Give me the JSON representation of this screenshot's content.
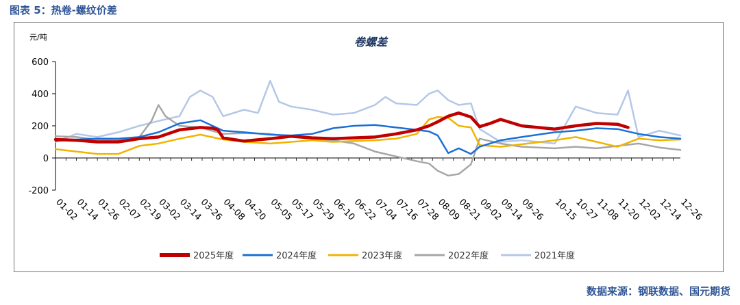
{
  "header": {
    "figure_title": "图表 5：热卷-螺纹价差"
  },
  "footer": {
    "source": "数据来源：钢联数据、国元期货"
  },
  "chart_data": {
    "type": "line",
    "title": "卷螺差",
    "ylabel": "元/吨",
    "ylim": [
      -200,
      600
    ],
    "yticks": [
      600,
      400,
      200,
      0,
      -200
    ],
    "x_tick_labels": [
      "01-02",
      "01-14",
      "01-26",
      "02-07",
      "02-19",
      "03-02",
      "03-14",
      "03-26",
      "04-08",
      "04-20",
      "05-05",
      "05-17",
      "05-29",
      "06-10",
      "06-22",
      "07-04",
      "07-16",
      "07-28",
      "08-09",
      "08-21",
      "09-02",
      "09-14",
      "09-26",
      "10-15",
      "10-27",
      "11-08",
      "11-20",
      "12-02",
      "12-14",
      "12-26"
    ],
    "legend_position": "bottom",
    "grid": false,
    "series": [
      {
        "name": "2025年度",
        "color": "#c00000",
        "x": [
          "01-02",
          "01-14",
          "01-26",
          "02-07",
          "02-19",
          "03-02",
          "03-14",
          "03-26",
          "04-02",
          "04-05",
          "04-08",
          "04-20",
          "05-05",
          "05-17",
          "05-29",
          "06-10",
          "06-22",
          "07-04",
          "07-16",
          "07-28",
          "08-04",
          "08-09",
          "08-15",
          "08-21",
          "08-28",
          "09-02",
          "09-08",
          "09-14",
          "09-26",
          "10-15",
          "10-27",
          "11-08",
          "11-20",
          "11-26"
        ],
        "y": [
          115,
          110,
          100,
          100,
          120,
          130,
          175,
          190,
          185,
          175,
          125,
          105,
          120,
          135,
          125,
          120,
          125,
          130,
          150,
          175,
          200,
          225,
          260,
          280,
          255,
          195,
          215,
          240,
          200,
          180,
          200,
          215,
          210,
          190
        ]
      },
      {
        "name": "2024年度",
        "color": "#1a6fd6",
        "x": [
          "01-02",
          "01-14",
          "01-26",
          "02-07",
          "02-19",
          "03-02",
          "03-14",
          "03-26",
          "04-08",
          "04-20",
          "05-05",
          "05-17",
          "05-29",
          "06-10",
          "06-22",
          "07-04",
          "07-16",
          "07-28",
          "08-04",
          "08-09",
          "08-15",
          "08-21",
          "08-28",
          "09-02",
          "09-14",
          "09-26",
          "10-15",
          "10-27",
          "11-08",
          "11-20",
          "12-02",
          "12-14",
          "12-26"
        ],
        "y": [
          105,
          115,
          120,
          120,
          130,
          160,
          215,
          235,
          170,
          160,
          145,
          140,
          150,
          185,
          200,
          205,
          190,
          175,
          165,
          140,
          30,
          60,
          25,
          70,
          110,
          130,
          160,
          170,
          185,
          180,
          150,
          130,
          120
        ]
      },
      {
        "name": "2023年度",
        "color": "#f0b400",
        "x": [
          "01-02",
          "01-14",
          "01-26",
          "02-07",
          "02-19",
          "03-02",
          "03-14",
          "03-26",
          "04-08",
          "04-20",
          "05-05",
          "05-17",
          "05-29",
          "06-10",
          "06-22",
          "07-04",
          "07-16",
          "07-28",
          "08-04",
          "08-09",
          "08-15",
          "08-21",
          "08-28",
          "09-02",
          "09-14",
          "09-26",
          "10-15",
          "10-27",
          "11-08",
          "11-20",
          "12-02",
          "12-14",
          "12-26"
        ],
        "y": [
          55,
          40,
          25,
          25,
          75,
          90,
          120,
          145,
          115,
          100,
          90,
          100,
          110,
          100,
          105,
          110,
          120,
          150,
          240,
          255,
          250,
          200,
          190,
          80,
          70,
          85,
          110,
          130,
          100,
          70,
          120,
          110,
          115
        ]
      },
      {
        "name": "2022年度",
        "color": "#a6a6a6",
        "x": [
          "01-02",
          "01-14",
          "01-26",
          "02-07",
          "02-19",
          "02-26",
          "03-02",
          "03-06",
          "03-14",
          "03-26",
          "04-08",
          "04-20",
          "05-05",
          "05-17",
          "05-29",
          "06-10",
          "06-22",
          "07-04",
          "07-16",
          "07-28",
          "08-04",
          "08-09",
          "08-15",
          "08-21",
          "08-28",
          "09-02",
          "09-14",
          "09-26",
          "10-15",
          "10-27",
          "11-08",
          "11-20",
          "12-02",
          "12-14",
          "12-26"
        ],
        "y": [
          135,
          130,
          115,
          110,
          130,
          230,
          330,
          260,
          200,
          190,
          150,
          155,
          150,
          130,
          120,
          110,
          90,
          40,
          10,
          -20,
          -35,
          -80,
          -110,
          -100,
          -40,
          120,
          90,
          70,
          60,
          70,
          60,
          75,
          90,
          65,
          50
        ]
      },
      {
        "name": "2021年度",
        "color": "#b4c7e7",
        "x": [
          "01-02",
          "01-14",
          "01-26",
          "02-07",
          "02-19",
          "03-02",
          "03-14",
          "03-20",
          "03-26",
          "04-02",
          "04-08",
          "04-20",
          "04-28",
          "05-05",
          "05-10",
          "05-17",
          "05-29",
          "06-10",
          "06-22",
          "07-04",
          "07-10",
          "07-16",
          "07-28",
          "08-04",
          "08-09",
          "08-15",
          "08-21",
          "08-28",
          "09-02",
          "09-14",
          "09-26",
          "10-15",
          "10-27",
          "11-08",
          "11-20",
          "11-26",
          "12-02",
          "12-14",
          "12-26"
        ],
        "y": [
          100,
          150,
          130,
          160,
          200,
          230,
          260,
          380,
          420,
          380,
          260,
          300,
          280,
          480,
          350,
          320,
          300,
          270,
          280,
          330,
          380,
          340,
          330,
          400,
          420,
          360,
          330,
          340,
          180,
          100,
          110,
          90,
          320,
          280,
          270,
          420,
          130,
          170,
          140
        ]
      }
    ]
  }
}
